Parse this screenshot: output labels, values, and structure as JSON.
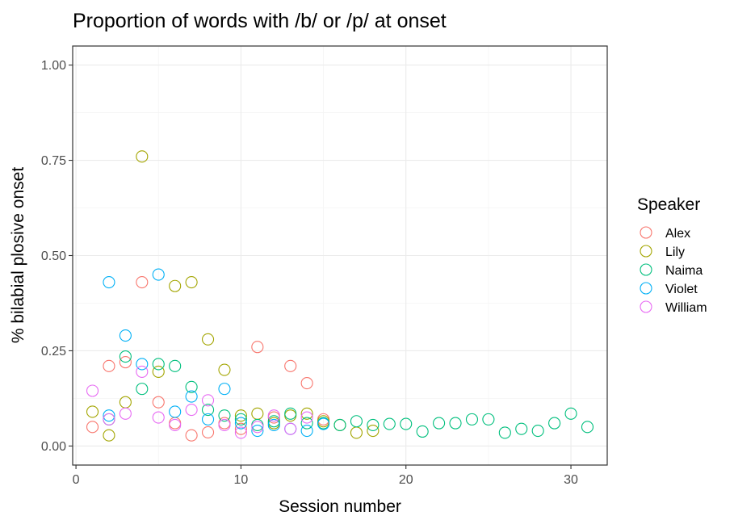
{
  "chart_data": {
    "type": "scatter",
    "title": "Proportion of words with /b/ or /p/ at onset",
    "xlabel": "Session number",
    "ylabel": "% bilabial plosive onset",
    "xlim": [
      -0.2,
      32.2
    ],
    "ylim": [
      -0.05,
      1.05
    ],
    "x_ticks": [
      0,
      10,
      20,
      30
    ],
    "y_ticks": [
      0.0,
      0.25,
      0.5,
      0.75,
      1.0
    ],
    "y_tick_labels": [
      "0.00",
      "0.25",
      "0.50",
      "0.75",
      "1.00"
    ],
    "grid": true,
    "legend": {
      "title": "Speaker",
      "position": "right"
    },
    "series": [
      {
        "name": "Alex",
        "color": "#F8766D",
        "points": [
          [
            1,
            0.05
          ],
          [
            2,
            0.21
          ],
          [
            3,
            0.22
          ],
          [
            4,
            0.43
          ],
          [
            5,
            0.115
          ],
          [
            6,
            0.06
          ],
          [
            7,
            0.028
          ],
          [
            8,
            0.036
          ],
          [
            9,
            0.06
          ],
          [
            10,
            0.045
          ],
          [
            11,
            0.26
          ],
          [
            12,
            0.075
          ],
          [
            13,
            0.21
          ],
          [
            14,
            0.165
          ],
          [
            15,
            0.07
          ]
        ]
      },
      {
        "name": "Lily",
        "color": "#A3A500",
        "points": [
          [
            1,
            0.09
          ],
          [
            2,
            0.028
          ],
          [
            3,
            0.115
          ],
          [
            4,
            0.76
          ],
          [
            5,
            0.195
          ],
          [
            6,
            0.42
          ],
          [
            7,
            0.43
          ],
          [
            8,
            0.28
          ],
          [
            9,
            0.2
          ],
          [
            10,
            0.08
          ],
          [
            11,
            0.085
          ],
          [
            12,
            0.06
          ],
          [
            13,
            0.08
          ],
          [
            14,
            0.085
          ],
          [
            15,
            0.065
          ],
          [
            16,
            0.055
          ],
          [
            17,
            0.035
          ],
          [
            18,
            0.04
          ]
        ]
      },
      {
        "name": "Naima",
        "color": "#00BF7D",
        "points": [
          [
            2,
            0.07
          ],
          [
            3,
            0.235
          ],
          [
            4,
            0.15
          ],
          [
            5,
            0.215
          ],
          [
            6,
            0.21
          ],
          [
            7,
            0.155
          ],
          [
            8,
            0.095
          ],
          [
            9,
            0.08
          ],
          [
            10,
            0.07
          ],
          [
            11,
            0.055
          ],
          [
            12,
            0.065
          ],
          [
            13,
            0.085
          ],
          [
            14,
            0.06
          ],
          [
            15,
            0.06
          ],
          [
            16,
            0.055
          ],
          [
            17,
            0.065
          ],
          [
            18,
            0.055
          ],
          [
            19,
            0.058
          ],
          [
            20,
            0.058
          ],
          [
            21,
            0.038
          ],
          [
            22,
            0.06
          ],
          [
            23,
            0.06
          ],
          [
            24,
            0.07
          ],
          [
            25,
            0.07
          ],
          [
            26,
            0.035
          ],
          [
            27,
            0.045
          ],
          [
            28,
            0.04
          ],
          [
            29,
            0.06
          ],
          [
            30,
            0.085
          ],
          [
            31,
            0.05
          ]
        ]
      },
      {
        "name": "Violet",
        "color": "#00B0F6",
        "points": [
          [
            2,
            0.43
          ],
          [
            2,
            0.08
          ],
          [
            3,
            0.29
          ],
          [
            4,
            0.215
          ],
          [
            5,
            0.45
          ],
          [
            6,
            0.09
          ],
          [
            7,
            0.13
          ],
          [
            8,
            0.07
          ],
          [
            9,
            0.15
          ],
          [
            10,
            0.06
          ],
          [
            11,
            0.04
          ],
          [
            12,
            0.055
          ],
          [
            13,
            0.045
          ],
          [
            14,
            0.04
          ],
          [
            15,
            0.058
          ]
        ]
      },
      {
        "name": "William",
        "color": "#E76BF3",
        "points": [
          [
            1,
            0.145
          ],
          [
            2,
            0.07
          ],
          [
            3,
            0.085
          ],
          [
            4,
            0.195
          ],
          [
            5,
            0.075
          ],
          [
            6,
            0.055
          ],
          [
            7,
            0.095
          ],
          [
            8,
            0.12
          ],
          [
            9,
            0.055
          ],
          [
            10,
            0.035
          ],
          [
            11,
            0.05
          ],
          [
            12,
            0.08
          ],
          [
            13,
            0.045
          ],
          [
            14,
            0.075
          ]
        ]
      }
    ]
  }
}
